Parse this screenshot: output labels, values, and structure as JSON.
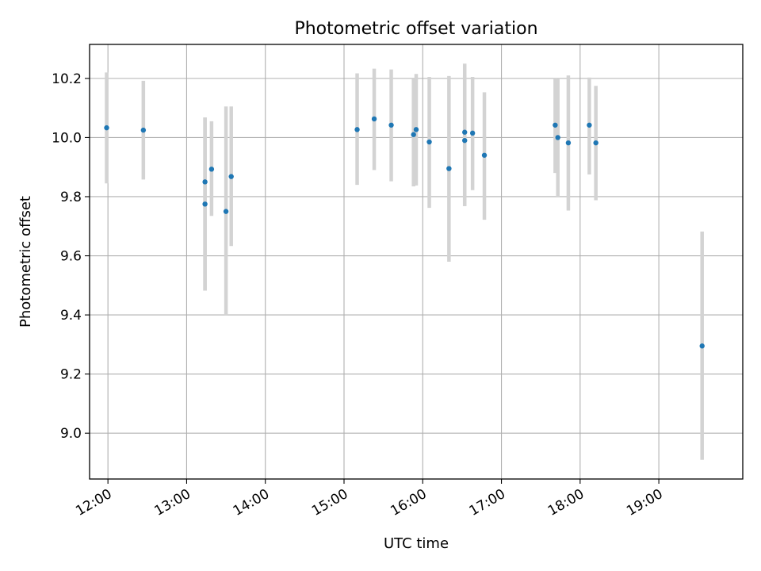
{
  "chart_data": {
    "type": "scatter",
    "title": "Photometric offset variation",
    "xlabel": "UTC time",
    "ylabel": "Photometric offset",
    "xlim": [
      "11:46",
      "20:04"
    ],
    "ylim": [
      8.845,
      10.315
    ],
    "grid": true,
    "x_ticks": [
      "12:00",
      "13:00",
      "14:00",
      "15:00",
      "16:00",
      "17:00",
      "18:00",
      "19:00"
    ],
    "y_ticks": [
      9.0,
      9.2,
      9.4,
      9.6,
      9.8,
      10.0,
      10.2
    ],
    "y_tick_labels": [
      "9.0",
      "9.2",
      "9.4",
      "9.6",
      "9.8",
      "10.0",
      "10.2"
    ],
    "series": [
      {
        "marker": "point",
        "color": "#1f77b4",
        "errorbar_color": "#d3d3d3",
        "points": [
          {
            "x": "11:59",
            "y": 10.033,
            "ylow": 9.845,
            "yhigh": 10.22
          },
          {
            "x": "12:27",
            "y": 10.025,
            "ylow": 9.858,
            "yhigh": 10.192
          },
          {
            "x": "13:14",
            "y": 9.85,
            "ylow": 9.482,
            "yhigh": 10.068
          },
          {
            "x": "13:14",
            "y": 9.775,
            "ylow": 9.482,
            "yhigh": 10.068
          },
          {
            "x": "13:19",
            "y": 9.893,
            "ylow": 9.735,
            "yhigh": 10.055
          },
          {
            "x": "13:30",
            "y": 9.75,
            "ylow": 9.4,
            "yhigh": 10.105
          },
          {
            "x": "13:34",
            "y": 9.868,
            "ylow": 9.633,
            "yhigh": 10.105
          },
          {
            "x": "15:10",
            "y": 10.027,
            "ylow": 9.84,
            "yhigh": 10.217
          },
          {
            "x": "15:23",
            "y": 10.063,
            "ylow": 9.89,
            "yhigh": 10.233
          },
          {
            "x": "15:36",
            "y": 10.042,
            "ylow": 9.852,
            "yhigh": 10.23
          },
          {
            "x": "15:53",
            "y": 10.01,
            "ylow": 9.835,
            "yhigh": 10.2
          },
          {
            "x": "15:55",
            "y": 10.027,
            "ylow": 9.838,
            "yhigh": 10.215
          },
          {
            "x": "16:05",
            "y": 9.985,
            "ylow": 9.762,
            "yhigh": 10.205
          },
          {
            "x": "16:20",
            "y": 9.895,
            "ylow": 9.58,
            "yhigh": 10.208
          },
          {
            "x": "16:32",
            "y": 10.018,
            "ylow": 9.768,
            "yhigh": 10.21
          },
          {
            "x": "16:32",
            "y": 9.99,
            "ylow": 9.768,
            "yhigh": 10.25
          },
          {
            "x": "16:38",
            "y": 10.015,
            "ylow": 9.822,
            "yhigh": 10.205
          },
          {
            "x": "16:47",
            "y": 9.94,
            "ylow": 9.722,
            "yhigh": 10.153
          },
          {
            "x": "17:41",
            "y": 10.042,
            "ylow": 9.88,
            "yhigh": 10.2
          },
          {
            "x": "17:43",
            "y": 10.0,
            "ylow": 9.8,
            "yhigh": 10.2
          },
          {
            "x": "17:51",
            "y": 9.982,
            "ylow": 9.753,
            "yhigh": 10.21
          },
          {
            "x": "18:07",
            "y": 10.042,
            "ylow": 9.875,
            "yhigh": 10.203
          },
          {
            "x": "18:12",
            "y": 9.982,
            "ylow": 9.788,
            "yhigh": 10.175
          },
          {
            "x": "19:33",
            "y": 9.295,
            "ylow": 8.91,
            "yhigh": 9.682
          }
        ]
      }
    ]
  }
}
